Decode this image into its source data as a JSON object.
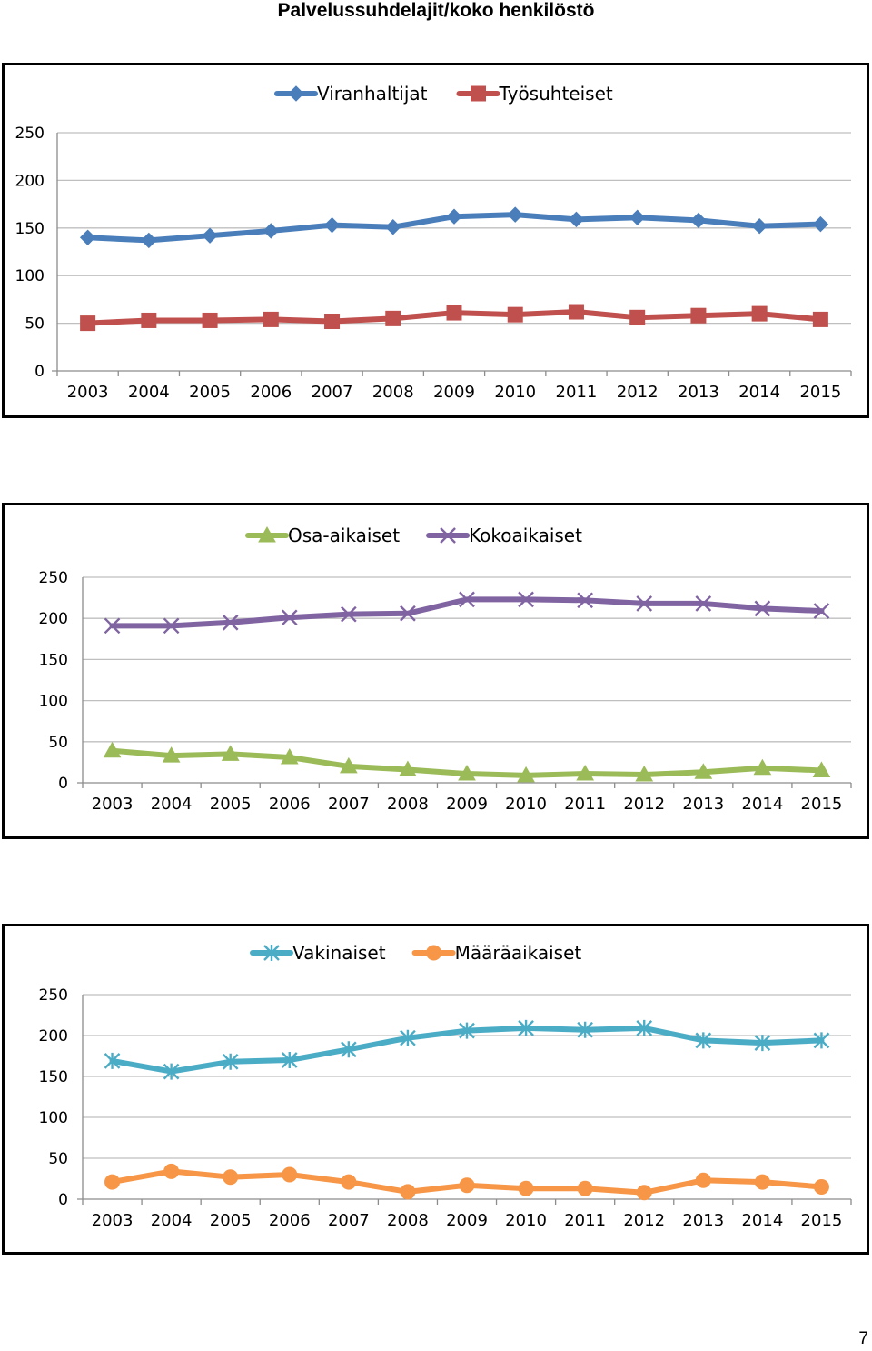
{
  "page": {
    "title": "Palvelussuhdelajit/koko henkilöstö",
    "page_number": "7"
  },
  "chart_data": [
    {
      "type": "line",
      "title": "",
      "categories": [
        "2003",
        "2004",
        "2005",
        "2006",
        "2007",
        "2008",
        "2009",
        "2010",
        "2011",
        "2012",
        "2013",
        "2014",
        "2015"
      ],
      "ylim": [
        0,
        250
      ],
      "yticks": [
        0,
        50,
        100,
        150,
        200,
        250
      ],
      "grid": true,
      "legend": "top-center",
      "series": [
        {
          "name": "Viranhaltijat",
          "color": "#4a7ebb",
          "marker": "diamond",
          "values": [
            140,
            137,
            142,
            147,
            153,
            151,
            162,
            164,
            159,
            161,
            158,
            152,
            154
          ]
        },
        {
          "name": "Työsuhteiset",
          "color": "#c0504d",
          "marker": "square",
          "values": [
            50,
            53,
            53,
            54,
            52,
            55,
            61,
            59,
            62,
            56,
            58,
            60,
            54
          ]
        }
      ]
    },
    {
      "type": "line",
      "title": "",
      "categories": [
        "2003",
        "2004",
        "2005",
        "2006",
        "2007",
        "2008",
        "2009",
        "2010",
        "2011",
        "2012",
        "2013",
        "2014",
        "2015"
      ],
      "ylim": [
        0,
        250
      ],
      "yticks": [
        0,
        50,
        100,
        150,
        200,
        250
      ],
      "grid": true,
      "legend": "top-center",
      "series": [
        {
          "name": "Osa-aikaiset",
          "color": "#9bbb59",
          "marker": "triangle",
          "values": [
            39,
            33,
            35,
            31,
            20,
            16,
            11,
            9,
            11,
            10,
            13,
            18,
            15
          ]
        },
        {
          "name": "Kokoaikaiset",
          "color": "#8064a2",
          "marker": "x",
          "values": [
            191,
            191,
            195,
            201,
            205,
            206,
            223,
            223,
            222,
            218,
            218,
            212,
            209
          ]
        }
      ]
    },
    {
      "type": "line",
      "title": "",
      "categories": [
        "2003",
        "2004",
        "2005",
        "2006",
        "2007",
        "2008",
        "2009",
        "2010",
        "2011",
        "2012",
        "2013",
        "2014",
        "2015"
      ],
      "ylim": [
        0,
        250
      ],
      "yticks": [
        0,
        50,
        100,
        150,
        200,
        250
      ],
      "grid": true,
      "legend": "top-center",
      "series": [
        {
          "name": "Vakinaiset",
          "color": "#4bacc6",
          "marker": "star",
          "values": [
            169,
            156,
            168,
            170,
            183,
            197,
            206,
            209,
            207,
            209,
            194,
            191,
            194
          ]
        },
        {
          "name": "Määräaikaiset",
          "color": "#f79646",
          "marker": "circle",
          "values": [
            21,
            34,
            27,
            30,
            21,
            9,
            17,
            13,
            13,
            8,
            23,
            21,
            15
          ]
        }
      ]
    }
  ]
}
